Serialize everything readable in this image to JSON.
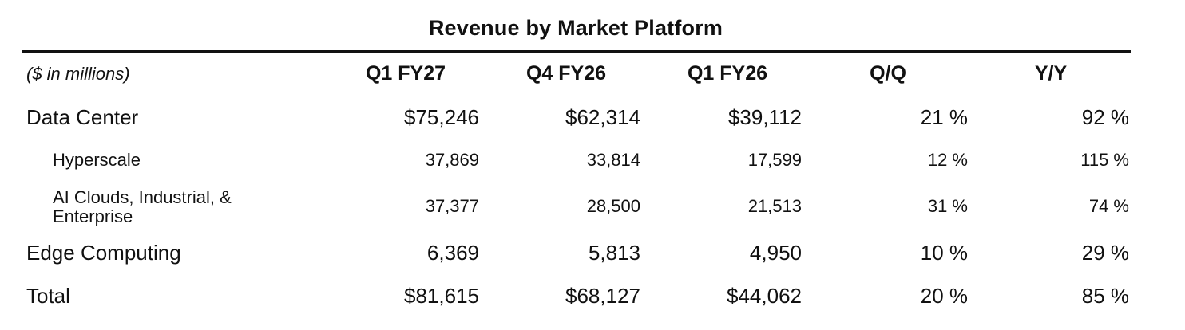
{
  "title": "Revenue by Market Platform",
  "header": {
    "units": "($ in millions)",
    "columns": [
      "Q1 FY27",
      "Q4 FY26",
      "Q1 FY26",
      "Q/Q",
      "Y/Y"
    ]
  },
  "rows": [
    {
      "label": "Data Center",
      "values": [
        "$75,246",
        "$62,314",
        "$39,112",
        "21 %",
        "92 %"
      ]
    },
    {
      "label": "Hyperscale",
      "values": [
        "37,869",
        "33,814",
        "17,599",
        "12 %",
        "115 %"
      ]
    },
    {
      "label": "AI Clouds, Industrial, & Enterprise",
      "values": [
        "37,377",
        "28,500",
        "21,513",
        "31 %",
        "74 %"
      ]
    },
    {
      "label": "Edge Computing",
      "values": [
        "6,369",
        "5,813",
        "4,950",
        "10 %",
        "29 %"
      ]
    },
    {
      "label": "Total",
      "values": [
        "$81,615",
        "$68,127",
        "$44,062",
        "20 %",
        "85 %"
      ]
    }
  ]
}
